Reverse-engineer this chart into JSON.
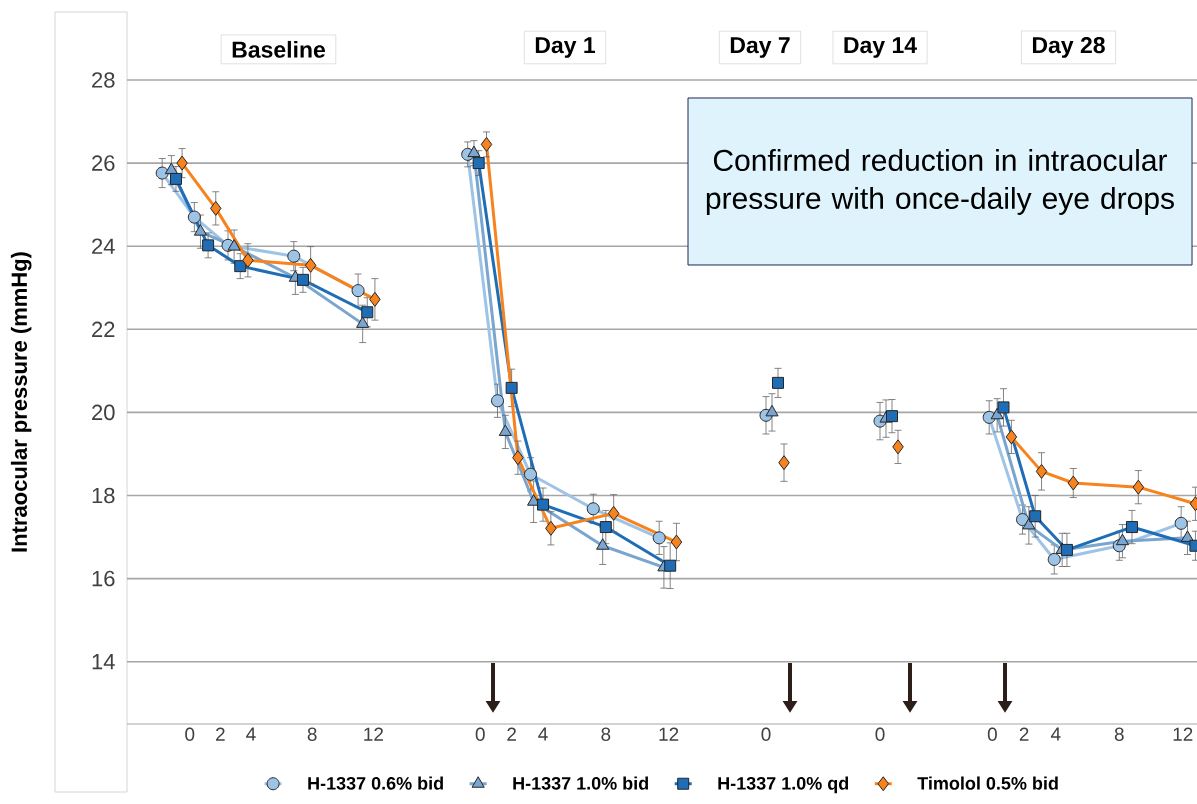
{
  "chart_data": [
    {
      "type": "line",
      "title": "Baseline",
      "ylabel": "Intraocular pressure (mmHg)",
      "xlim": [
        -4.1,
        15.7
      ],
      "xticks": [
        0,
        2,
        4,
        8,
        12
      ],
      "ylim": [
        12.5,
        28
      ],
      "yticks": [
        14,
        16,
        18,
        20,
        22,
        24,
        26,
        28
      ],
      "grid": "y",
      "legend": "bottom",
      "line_style": "solid",
      "series": [
        {
          "name": "H-1337 0.6% bid",
          "color": "#9dc3e6",
          "marker": "circle",
          "x": [
            -1.8,
            0.3,
            2.5,
            6.8,
            11.0
          ],
          "values": [
            25.76,
            24.7,
            24.02,
            23.76,
            22.93
          ],
          "errors": [
            0.35,
            0.35,
            0.35,
            0.35,
            0.4
          ]
        },
        {
          "name": "H-1337 1.0% bid",
          "color": "#7aa5cf",
          "marker": "triangle",
          "x": [
            -1.2,
            0.7,
            2.9,
            6.9,
            11.3
          ],
          "values": [
            25.83,
            24.35,
            23.99,
            23.24,
            22.13
          ],
          "errors": [
            0.35,
            0.4,
            0.4,
            0.4,
            0.45
          ]
        },
        {
          "name": "H-1337 1.0% qd",
          "color": "#1f6db5",
          "marker": "square",
          "x": [
            -0.9,
            1.2,
            3.3,
            7.4,
            11.6
          ],
          "values": [
            25.62,
            24.02,
            23.52,
            23.19,
            22.41
          ],
          "errors": [
            0.3,
            0.3,
            0.3,
            0.3,
            0.35
          ]
        },
        {
          "name": "Timolol 0.5% bid",
          "color": "#f7831e",
          "marker": "diamond",
          "x": [
            -0.5,
            1.7,
            3.8,
            7.9,
            12.1
          ],
          "values": [
            26.0,
            24.91,
            23.66,
            23.54,
            22.72
          ],
          "errors": [
            0.35,
            0.4,
            0.4,
            0.45,
            0.5
          ]
        }
      ]
    },
    {
      "type": "line",
      "title": "Day 1",
      "xlim": [
        -3.2,
        14.0
      ],
      "xticks": [
        0,
        2,
        4,
        8,
        12
      ],
      "ylim": [
        12.5,
        28
      ],
      "yticks": [
        14,
        16,
        18,
        20,
        22,
        24,
        26,
        28
      ],
      "tick_labels": "x",
      "grid": "y",
      "line_style": "solid",
      "series": [
        {
          "color": "#9dc3e6",
          "marker": "circle",
          "x": [
            -0.8,
            1.1,
            3.2,
            7.2,
            11.4
          ],
          "values": [
            26.21,
            20.28,
            18.51,
            17.68,
            16.98
          ],
          "errors": [
            0.3,
            0.4,
            0.4,
            0.35,
            0.4
          ]
        },
        {
          "color": "#7aa5cf",
          "marker": "triangle",
          "x": [
            -0.4,
            1.6,
            3.4,
            7.8,
            11.7
          ],
          "values": [
            26.24,
            19.53,
            17.85,
            16.79,
            16.27
          ],
          "errors": [
            0.3,
            0.4,
            0.5,
            0.45,
            0.5
          ]
        },
        {
          "color": "#1f6db5",
          "marker": "square",
          "x": [
            -0.1,
            2.0,
            4.0,
            8.0,
            12.1
          ],
          "values": [
            26.0,
            20.59,
            17.78,
            17.24,
            16.31
          ],
          "errors": [
            0.3,
            0.45,
            0.4,
            0.4,
            0.55
          ]
        },
        {
          "color": "#f7831e",
          "marker": "diamond",
          "x": [
            0.4,
            2.4,
            4.5,
            8.5,
            12.5
          ],
          "values": [
            26.45,
            18.91,
            17.21,
            17.57,
            16.88
          ],
          "errors": [
            0.3,
            0.4,
            0.4,
            0.45,
            0.45
          ]
        }
      ]
    },
    {
      "type": "scatter",
      "title": "Day 7",
      "categories": [
        "0"
      ],
      "ylim": [
        12.5,
        28
      ],
      "yticks": [
        14,
        16,
        18,
        20,
        22,
        24,
        26,
        28
      ],
      "tick_labels": "x",
      "grid": "y",
      "series": [
        {
          "color": "#9dc3e6",
          "marker": "circle",
          "values": [
            19.93
          ],
          "errors": [
            0.45
          ]
        },
        {
          "color": "#7aa5cf",
          "marker": "triangle",
          "values": [
            20.0
          ],
          "errors": [
            0.45
          ]
        },
        {
          "color": "#1f6db5",
          "marker": "square",
          "values": [
            20.71
          ],
          "errors": [
            0.35
          ]
        },
        {
          "color": "#f7831e",
          "marker": "diamond",
          "values": [
            18.79
          ],
          "errors": [
            0.45
          ]
        }
      ]
    },
    {
      "type": "scatter",
      "title": "Day 14",
      "categories": [
        "0"
      ],
      "ylim": [
        12.5,
        28
      ],
      "yticks": [
        14,
        16,
        18,
        20,
        22,
        24,
        26,
        28
      ],
      "tick_labels": "x",
      "grid": "y",
      "series": [
        {
          "color": "#9dc3e6",
          "marker": "circle",
          "values": [
            19.79
          ],
          "errors": [
            0.45
          ]
        },
        {
          "color": "#7aa5cf",
          "marker": "triangle",
          "values": [
            19.85
          ],
          "errors": [
            0.45
          ]
        },
        {
          "color": "#1f6db5",
          "marker": "square",
          "values": [
            19.91
          ],
          "errors": [
            0.4
          ]
        },
        {
          "color": "#f7831e",
          "marker": "diamond",
          "values": [
            19.17
          ],
          "errors": [
            0.4
          ]
        }
      ]
    },
    {
      "type": "line",
      "title": "Day 28",
      "annotations": [
        "Confirmed reduction in intraocular pressure with once-daily eye drops"
      ],
      "xlim": [
        -3.3,
        12.9
      ],
      "xticks": [
        0,
        2,
        4,
        8,
        12
      ],
      "ylim": [
        12.5,
        28
      ],
      "yticks": [
        14,
        16,
        18,
        20,
        22,
        24,
        26,
        28
      ],
      "tick_labels": "x",
      "grid": "y",
      "line_style": "solid",
      "series": [
        {
          "color": "#9dc3e6",
          "marker": "circle",
          "x": [
            -0.2,
            1.9,
            3.9,
            8.0,
            11.9
          ],
          "values": [
            19.88,
            17.42,
            16.46,
            16.79,
            17.33
          ],
          "errors": [
            0.4,
            0.35,
            0.35,
            0.35,
            0.4
          ]
        },
        {
          "color": "#7aa5cf",
          "marker": "triangle",
          "x": [
            0.3,
            2.3,
            4.4,
            8.2,
            12.3
          ],
          "values": [
            19.93,
            17.28,
            16.69,
            16.9,
            16.98
          ],
          "errors": [
            0.4,
            0.45,
            0.4,
            0.4,
            0.4
          ]
        },
        {
          "color": "#1f6db5",
          "marker": "square",
          "x": [
            0.7,
            2.7,
            4.7,
            8.8,
            12.8
          ],
          "values": [
            20.12,
            17.5,
            16.69,
            17.24,
            16.79
          ],
          "errors": [
            0.45,
            0.5,
            0.4,
            0.4,
            0.35
          ]
        },
        {
          "color": "#f7831e",
          "marker": "diamond",
          "x": [
            1.2,
            3.1,
            5.1,
            9.2,
            12.8
          ],
          "values": [
            19.41,
            18.58,
            18.3,
            18.2,
            17.8
          ],
          "errors": [
            0.4,
            0.45,
            0.35,
            0.4,
            0.4
          ]
        }
      ]
    }
  ]
}
